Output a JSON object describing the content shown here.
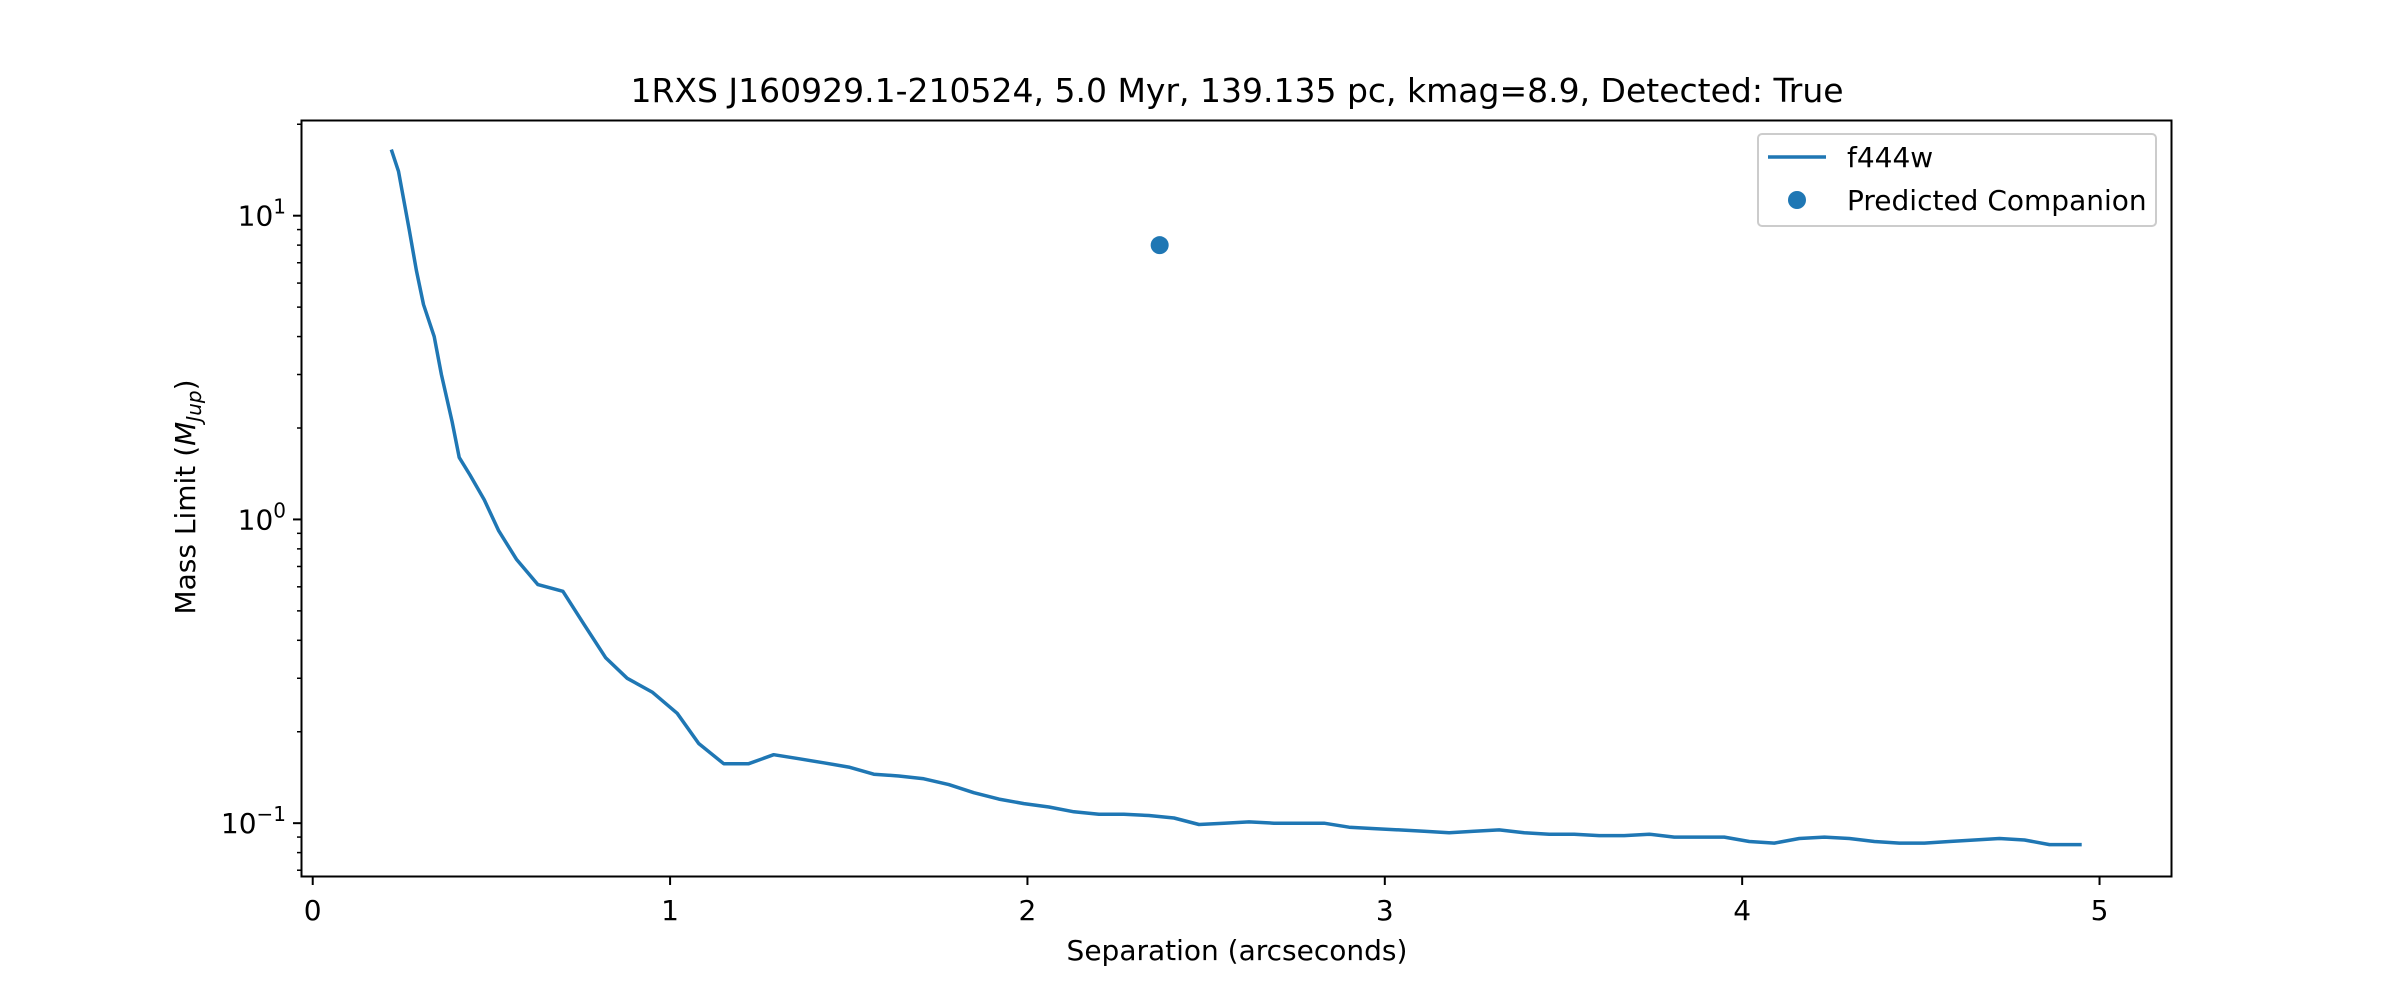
{
  "chart_data": {
    "type": "line",
    "title": "1RXS J160929.1-210524, 5.0 Myr, 139.135 pc, kmag=8.9, Detected: True",
    "xlabel": "Separation (arcseconds)",
    "ylabel": "Mass Limit (",
    "ylabel_math_base": "M",
    "ylabel_math_sub": "Jup",
    "ylabel_suffix": ")",
    "x_scale": "linear",
    "y_scale": "log",
    "xlim": [
      -0.03,
      5.2
    ],
    "ylim": [
      0.067,
      20.5
    ],
    "grid": false,
    "legend_position": "upper right",
    "x_ticks": [
      {
        "value": 0,
        "label": "0"
      },
      {
        "value": 1,
        "label": "1"
      },
      {
        "value": 2,
        "label": "2"
      },
      {
        "value": 3,
        "label": "3"
      },
      {
        "value": 4,
        "label": "4"
      },
      {
        "value": 5,
        "label": "5"
      }
    ],
    "y_ticks": [
      {
        "value": 0.1,
        "base": "10",
        "exp": "−1"
      },
      {
        "value": 1,
        "base": "10",
        "exp": "0"
      },
      {
        "value": 10,
        "base": "10",
        "exp": "1"
      }
    ],
    "series": [
      {
        "name": "f444w",
        "kind": "line",
        "color": "#1f77b4",
        "x": [
          0.22,
          0.24,
          0.27,
          0.29,
          0.31,
          0.34,
          0.36,
          0.39,
          0.41,
          0.44,
          0.48,
          0.52,
          0.57,
          0.63,
          0.7,
          0.76,
          0.82,
          0.88,
          0.95,
          1.02,
          1.08,
          1.15,
          1.22,
          1.29,
          1.36,
          1.43,
          1.5,
          1.57,
          1.64,
          1.71,
          1.78,
          1.85,
          1.92,
          1.99,
          2.06,
          2.13,
          2.2,
          2.27,
          2.34,
          2.41,
          2.48,
          2.55,
          2.62,
          2.69,
          2.76,
          2.83,
          2.9,
          2.97,
          3.04,
          3.11,
          3.18,
          3.25,
          3.32,
          3.39,
          3.46,
          3.53,
          3.6,
          3.67,
          3.74,
          3.81,
          3.88,
          3.95,
          4.02,
          4.09,
          4.16,
          4.23,
          4.3,
          4.37,
          4.44,
          4.51,
          4.58,
          4.65,
          4.72,
          4.79,
          4.86,
          4.95
        ],
        "y": [
          16.5,
          14.0,
          9.0,
          6.6,
          5.1,
          4.0,
          3.0,
          2.1,
          1.6,
          1.4,
          1.16,
          0.92,
          0.74,
          0.61,
          0.58,
          0.45,
          0.35,
          0.3,
          0.27,
          0.23,
          0.183,
          0.157,
          0.157,
          0.168,
          0.163,
          0.158,
          0.153,
          0.145,
          0.143,
          0.14,
          0.134,
          0.126,
          0.12,
          0.116,
          0.113,
          0.109,
          0.107,
          0.107,
          0.106,
          0.104,
          0.099,
          0.1,
          0.101,
          0.1,
          0.1,
          0.1,
          0.097,
          0.096,
          0.095,
          0.094,
          0.093,
          0.094,
          0.095,
          0.093,
          0.092,
          0.092,
          0.091,
          0.091,
          0.092,
          0.09,
          0.09,
          0.09,
          0.087,
          0.086,
          0.089,
          0.09,
          0.089,
          0.087,
          0.086,
          0.086,
          0.087,
          0.088,
          0.089,
          0.088,
          0.085,
          0.085
        ]
      },
      {
        "name": "Predicted Companion",
        "kind": "scatter",
        "color": "#1f77b4",
        "x": [
          2.37
        ],
        "y": [
          8.0
        ]
      }
    ]
  }
}
